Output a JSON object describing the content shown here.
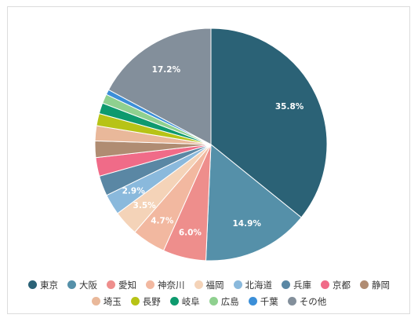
{
  "chart_data": {
    "type": "pie",
    "slices": [
      {
        "label": "東京",
        "value": 35.8,
        "color": "#2b6276",
        "value_label": "35.8%"
      },
      {
        "label": "大阪",
        "value": 14.9,
        "color": "#5590a9",
        "value_label": "14.9%"
      },
      {
        "label": "愛知",
        "value": 6.0,
        "color": "#ee8e8c",
        "value_label": "6.0%"
      },
      {
        "label": "神奈川",
        "value": 4.7,
        "color": "#f2b8a0",
        "value_label": "4.7%"
      },
      {
        "label": "福岡",
        "value": 3.5,
        "color": "#f4d3b8",
        "value_label": "3.5%"
      },
      {
        "label": "北海道",
        "value": 2.9,
        "color": "#8ab9dc",
        "value_label": "2.9%"
      },
      {
        "label": "兵庫",
        "value": 2.8,
        "color": "#5a87a4",
        "value_label": ""
      },
      {
        "label": "京都",
        "value": 2.6,
        "color": "#f06b88",
        "value_label": ""
      },
      {
        "label": "静岡",
        "value": 2.3,
        "color": "#b08c72",
        "value_label": ""
      },
      {
        "label": "埼玉",
        "value": 2.1,
        "color": "#e9b89a",
        "value_label": ""
      },
      {
        "label": "長野",
        "value": 1.7,
        "color": "#b7c316",
        "value_label": ""
      },
      {
        "label": "岐阜",
        "value": 1.5,
        "color": "#0e9a6e",
        "value_label": ""
      },
      {
        "label": "広島",
        "value": 1.3,
        "color": "#8fd08f",
        "value_label": ""
      },
      {
        "label": "千葉",
        "value": 0.7,
        "color": "#3b8fd8",
        "value_label": ""
      },
      {
        "label": "その他",
        "value": 17.2,
        "color": "#838f9b",
        "value_label": "17.2%"
      }
    ],
    "start": "top",
    "direction": "clockwise",
    "legend": "bottom"
  }
}
